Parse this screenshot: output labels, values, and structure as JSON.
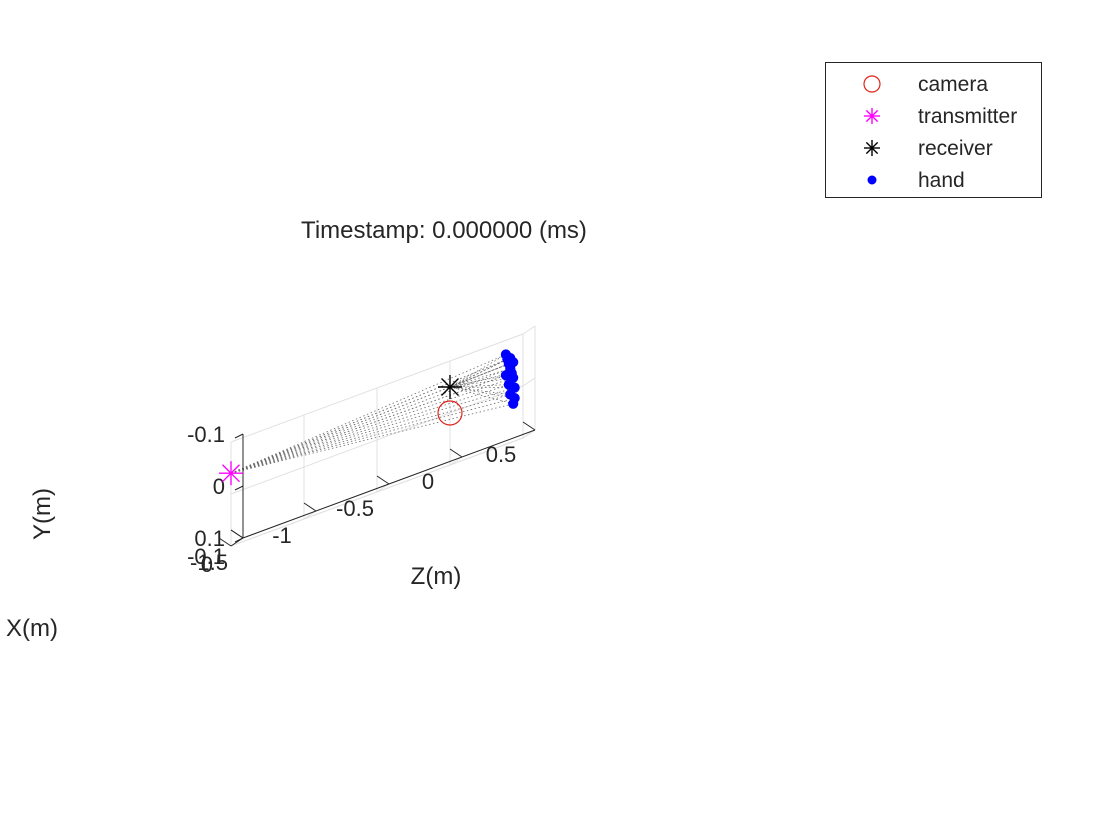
{
  "chart_data": {
    "type": "scatter",
    "title": "Timestamp: 0.000000 (ms)",
    "xlabel": "X(m)",
    "ylabel": "Y(m)",
    "zlabel": "Z(m)",
    "xlim": [
      -0.1,
      0
    ],
    "ylim": [
      -0.1,
      0.1
    ],
    "zlim": [
      -1.5,
      0.5
    ],
    "x_ticks": [
      "-0.1",
      "0"
    ],
    "y_ticks": [
      "-0.1",
      "0",
      "0.1"
    ],
    "z_ticks": [
      "-1.5",
      "-1",
      "-0.5",
      "0",
      "0.5"
    ],
    "grid": true,
    "legend_position": "top-right",
    "series": [
      {
        "name": "camera",
        "marker": "circle",
        "color": "#e0241b",
        "points": [
          {
            "x": 0,
            "y": 0,
            "z": 0
          }
        ]
      },
      {
        "name": "transmitter",
        "marker": "asterisk",
        "color": "#ff00ff",
        "points": [
          {
            "x": 0,
            "y": -0.04,
            "z": -1.5
          }
        ]
      },
      {
        "name": "receiver",
        "marker": "asterisk",
        "color": "#000000",
        "points": [
          {
            "x": 0,
            "y": -0.05,
            "z": 0
          }
        ]
      },
      {
        "name": "hand",
        "marker": "dot",
        "color": "#0000ff",
        "points": [
          {
            "x": -0.04,
            "y": -0.07,
            "z": 0.35
          },
          {
            "x": -0.04,
            "y": -0.06,
            "z": 0.36
          },
          {
            "x": -0.04,
            "y": -0.05,
            "z": 0.37
          },
          {
            "x": -0.04,
            "y": -0.04,
            "z": 0.38
          },
          {
            "x": -0.04,
            "y": -0.03,
            "z": 0.39
          },
          {
            "x": -0.04,
            "y": -0.02,
            "z": 0.4
          },
          {
            "x": -0.04,
            "y": 0.0,
            "z": 0.41
          },
          {
            "x": -0.04,
            "y": 0.02,
            "z": 0.41
          },
          {
            "x": -0.04,
            "y": 0.03,
            "z": 0.4
          },
          {
            "x": -0.04,
            "y": -0.01,
            "z": 0.37
          },
          {
            "x": -0.04,
            "y": -0.03,
            "z": 0.35
          },
          {
            "x": -0.04,
            "y": 0.01,
            "z": 0.38
          },
          {
            "x": -0.04,
            "y": -0.06,
            "z": 0.38
          },
          {
            "x": -0.04,
            "y": -0.05,
            "z": 0.4
          }
        ]
      }
    ]
  }
}
